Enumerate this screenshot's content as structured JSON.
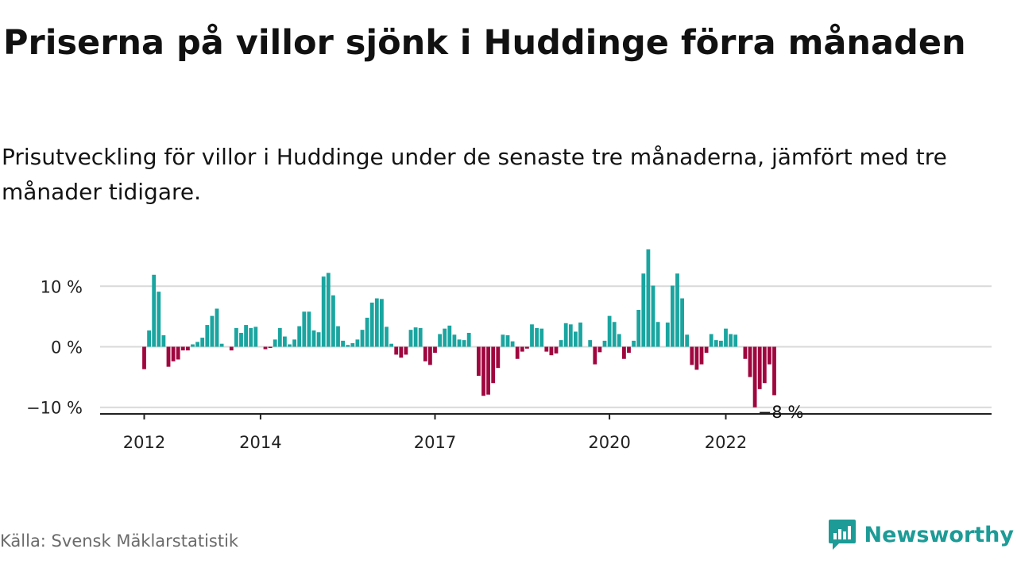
{
  "title": "Priserna på villor sjönk i Huddinge förra månaden",
  "subtitle": "Prisutveckling för villor i Huddinge under de senaste tre månaderna, jämfört med tre månader tidigare.",
  "source": "Källa: Svensk Mäklarstatistik",
  "brand": "Newsworthy",
  "colors": {
    "positive": "#1aa5a0",
    "negative": "#a0063e",
    "brand": "#1d9b97",
    "grid": "#d9d9d9",
    "axis": "#222222"
  },
  "chart_data": {
    "type": "bar",
    "title": "",
    "xlabel": "",
    "ylabel": "",
    "unit": "%",
    "ylim": [
      -11,
      17
    ],
    "yticks": [
      {
        "value": 10,
        "label": "10 %"
      },
      {
        "value": 0,
        "label": "0 %"
      },
      {
        "value": -10,
        "label": "−10 %"
      }
    ],
    "xticks": [
      {
        "label": "2012",
        "index": 0
      },
      {
        "label": "2014",
        "index": 24
      },
      {
        "label": "2017",
        "index": 60
      },
      {
        "label": "2020",
        "index": 96
      },
      {
        "label": "2022",
        "index": 120
      }
    ],
    "start": "2012-01",
    "values": [
      -3.7,
      2.7,
      11.9,
      9.1,
      1.9,
      -3.3,
      -2.4,
      -2.1,
      -0.6,
      -0.6,
      0.4,
      0.8,
      1.5,
      3.6,
      5.1,
      6.3,
      0.5,
      0,
      -0.6,
      3.1,
      2.3,
      3.6,
      3.1,
      3.3,
      0,
      -0.4,
      -0.2,
      1.2,
      3.1,
      1.7,
      0.4,
      1.2,
      3.4,
      5.8,
      5.8,
      2.7,
      2.4,
      11.6,
      12.2,
      8.5,
      3.4,
      1.0,
      0.3,
      0.6,
      1.2,
      2.8,
      4.8,
      7.3,
      8.0,
      7.9,
      3.3,
      0.5,
      -1.3,
      -1.8,
      -1.3,
      2.8,
      3.2,
      3.1,
      -2.4,
      -3.0,
      -1.0,
      2.1,
      3.0,
      3.5,
      2.0,
      1.2,
      1.1,
      2.3,
      0,
      -4.8,
      -8.1,
      -7.9,
      -6.0,
      -3.5,
      2.0,
      1.9,
      0.9,
      -2.0,
      -0.8,
      -0.3,
      3.7,
      3.1,
      3.0,
      -0.8,
      -1.4,
      -1.1,
      1.1,
      3.9,
      3.7,
      2.5,
      4.0,
      0,
      1.1,
      -2.9,
      -0.9,
      1.0,
      5.1,
      4.1,
      2.1,
      -2.0,
      -1.0,
      1.0,
      6.1,
      12.1,
      16.1,
      10.1,
      4.1,
      0,
      4.0,
      10.1,
      12.1,
      8.0,
      2.0,
      -3.0,
      -3.8,
      -2.9,
      -1.0,
      2.1,
      1.1,
      1.0,
      3.0,
      2.1,
      2.0,
      0,
      -2.0,
      -5.0,
      -10.0,
      -7.0,
      -6.0,
      -2.9,
      -8.0
    ],
    "last_label": "−8 %"
  }
}
